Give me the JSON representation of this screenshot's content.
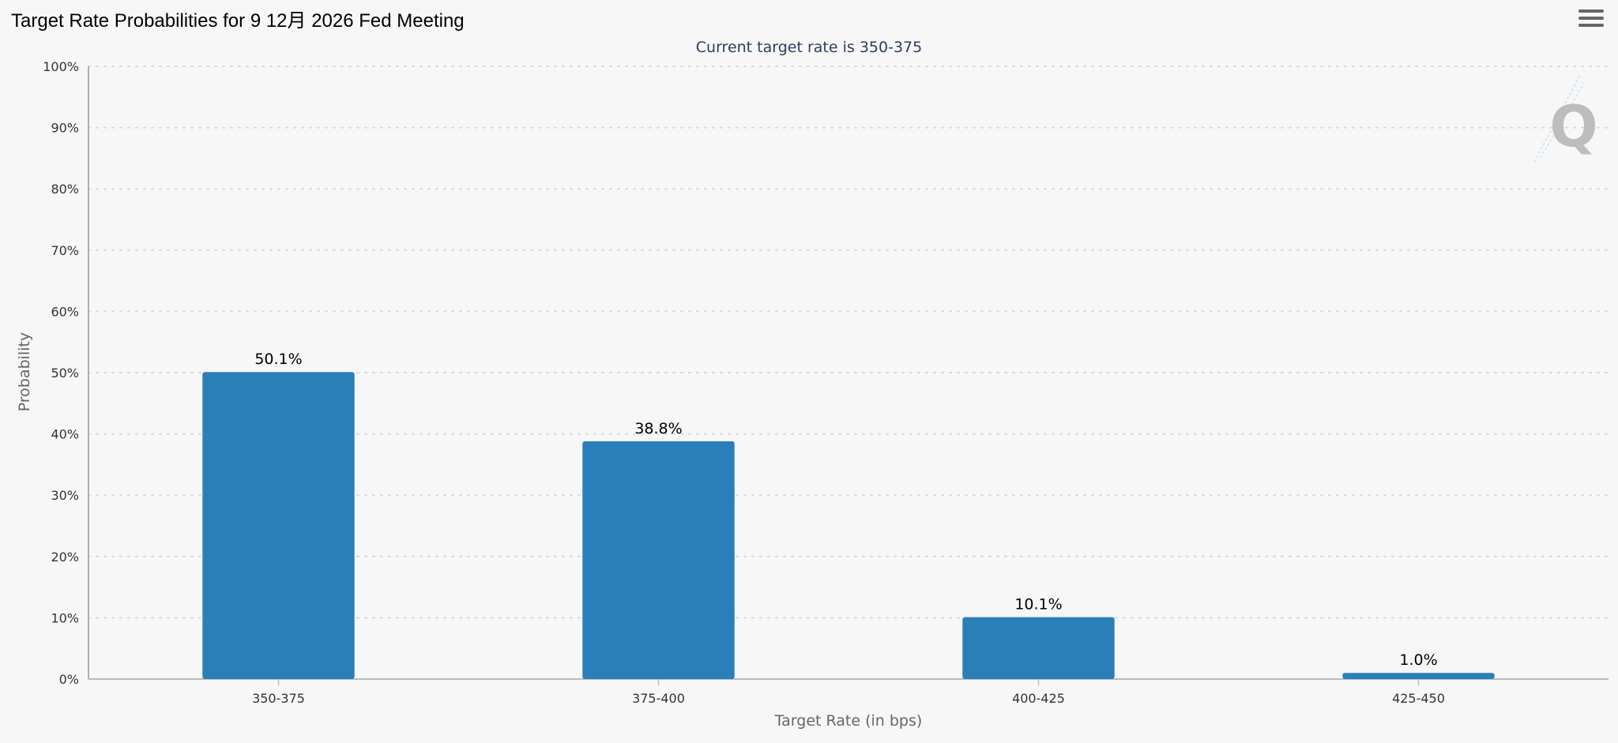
{
  "title": "Target Rate Probabilities for 9 12月 2026 Fed Meeting",
  "menu_icon": "hamburger-menu-icon",
  "watermark_icon": "q-logo-icon",
  "colors": {
    "bar": "#2a7fb8",
    "background": "#f7f7f7",
    "grid": "#d9d9d9",
    "subtitle": "#2b3e5c",
    "watermark": "#bdbdbd"
  },
  "chart_data": {
    "type": "bar",
    "title": "Target Rate Probabilities for 9 12月 2026 Fed Meeting",
    "subtitle": "Current target rate is 350-375",
    "xlabel": "Target Rate (in bps)",
    "ylabel": "Probability",
    "categories": [
      "350-375",
      "375-400",
      "400-425",
      "425-450"
    ],
    "values": [
      50.1,
      38.8,
      10.1,
      1.0
    ],
    "data_labels": [
      "50.1%",
      "38.8%",
      "10.1%",
      "1.0%"
    ],
    "ylim": [
      0,
      100
    ],
    "yticks": [
      0,
      10,
      20,
      30,
      40,
      50,
      60,
      70,
      80,
      90,
      100
    ],
    "ytick_labels": [
      "0%",
      "10%",
      "20%",
      "30%",
      "40%",
      "50%",
      "60%",
      "70%",
      "80%",
      "90%",
      "100%"
    ],
    "grid": true,
    "legend": "none"
  }
}
